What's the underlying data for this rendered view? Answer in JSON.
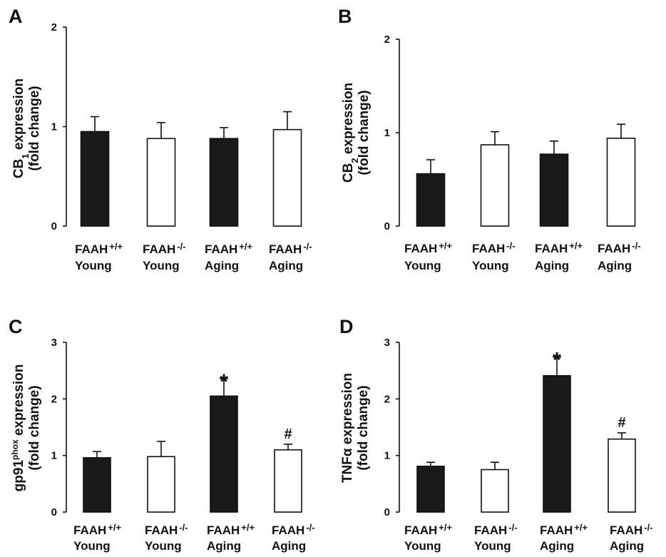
{
  "colors": {
    "wildtype": "#1a1a1a",
    "knockout": "#ffffff",
    "axis": "#111111"
  },
  "chart_data": [
    {
      "type": "bar",
      "panel": "A",
      "ylabel": {
        "line1": [
          "CB",
          "1",
          " expression"
        ],
        "line2": "(fold change)"
      },
      "yticks": [
        "0",
        "1",
        "2"
      ],
      "ylim": [
        0,
        2
      ],
      "categories": [
        {
          "line1": "FAAH",
          "sup": "+/+",
          "line2": "Young"
        },
        {
          "line1": "FAAH",
          "sup": "-/-",
          "line2": "Young"
        },
        {
          "line1": "FAAH",
          "sup": "+/+",
          "line2": "Aging"
        },
        {
          "line1": "FAAH",
          "sup": "-/-",
          "line2": "Aging"
        }
      ],
      "values": [
        0.95,
        0.88,
        0.88,
        0.97
      ],
      "errors": [
        0.15,
        0.16,
        0.11,
        0.18
      ],
      "fills": [
        "wildtype",
        "knockout",
        "wildtype",
        "knockout"
      ],
      "annotations": [
        "",
        "",
        "",
        ""
      ]
    },
    {
      "type": "bar",
      "panel": "B",
      "ylabel": {
        "line1": [
          "CB",
          "2",
          " expression"
        ],
        "line2": "(fold change)"
      },
      "yticks": [
        "0",
        "1",
        "2"
      ],
      "ylim": [
        0,
        2
      ],
      "categories": [
        {
          "line1": "FAAH",
          "sup": "+/+",
          "line2": "Young"
        },
        {
          "line1": "FAAH",
          "sup": "-/-",
          "line2": "Young"
        },
        {
          "line1": "FAAH",
          "sup": "+/+",
          "line2": "Aging"
        },
        {
          "line1": "FAAH",
          "sup": "-/-",
          "line2": "Aging"
        }
      ],
      "values": [
        0.56,
        0.87,
        0.77,
        0.94
      ],
      "errors": [
        0.15,
        0.14,
        0.14,
        0.15
      ],
      "fills": [
        "wildtype",
        "knockout",
        "wildtype",
        "knockout"
      ],
      "annotations": [
        "",
        "",
        "",
        ""
      ]
    },
    {
      "type": "bar",
      "panel": "C",
      "ylabel": {
        "line1": [
          "gp91",
          "phox",
          " expression"
        ],
        "line2": "(fold change)"
      },
      "yticks": [
        "0",
        "1",
        "2",
        "3"
      ],
      "ylim": [
        0,
        3
      ],
      "categories": [
        {
          "line1": "FAAH",
          "sup": "+/+",
          "line2": "Young"
        },
        {
          "line1": "FAAH",
          "sup": "-/-",
          "line2": "Young"
        },
        {
          "line1": "FAAH",
          "sup": "+/+",
          "line2": "Aging"
        },
        {
          "line1": "FAAH",
          "sup": "-/-",
          "line2": "Aging"
        }
      ],
      "values": [
        0.96,
        0.98,
        2.05,
        1.1
      ],
      "errors": [
        0.11,
        0.27,
        0.31,
        0.1
      ],
      "fills": [
        "wildtype",
        "knockout",
        "wildtype",
        "knockout"
      ],
      "annotations": [
        "",
        "",
        "*",
        "#"
      ]
    },
    {
      "type": "bar",
      "panel": "D",
      "ylabel": {
        "line1": [
          "TNFα expression"
        ],
        "line2": "(fold change)"
      },
      "yticks": [
        "0",
        "1",
        "2",
        "3"
      ],
      "ylim": [
        0,
        3
      ],
      "categories": [
        {
          "line1": "FAAH",
          "sup": "+/+",
          "line2": "Young"
        },
        {
          "line1": "FAAH",
          "sup": "-/-",
          "line2": "Young"
        },
        {
          "line1": "FAAH",
          "sup": "+/+",
          "line2": "Aging"
        },
        {
          "line1": "FAAH",
          "sup": "-/-",
          "line2": "Aging"
        }
      ],
      "values": [
        0.81,
        0.75,
        2.41,
        1.29
      ],
      "errors": [
        0.07,
        0.13,
        0.33,
        0.11
      ],
      "fills": [
        "wildtype",
        "knockout",
        "wildtype",
        "knockout"
      ],
      "annotations": [
        "",
        "",
        "*",
        "#"
      ]
    }
  ]
}
